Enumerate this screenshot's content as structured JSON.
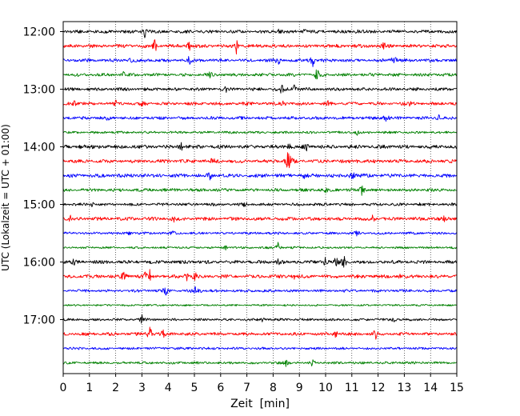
{
  "chart_data": {
    "type": "line",
    "title": "",
    "xlabel": "Zeit  [min]",
    "ylabel": "UTC (Lokalzeit = UTC + 01:00)",
    "xlim": [
      0,
      15
    ],
    "x_ticks": [
      0,
      1,
      2,
      3,
      4,
      5,
      6,
      7,
      8,
      9,
      10,
      11,
      12,
      13,
      14,
      15
    ],
    "x_tick_labels": [
      "0",
      "1",
      "2",
      "3",
      "4",
      "5",
      "6",
      "7",
      "8",
      "9",
      "10",
      "11",
      "12",
      "13",
      "14",
      "15"
    ],
    "grid": "vertical dotted lines at each minute",
    "start_time": "12:00",
    "end_time": "17:45",
    "trace_interval_minutes": 15,
    "y_tick_labels": [
      {
        "label": "12:00",
        "row": 0
      },
      {
        "label": "13:00",
        "row": 4
      },
      {
        "label": "14:00",
        "row": 8
      },
      {
        "label": "15:00",
        "row": 12
      },
      {
        "label": "16:00",
        "row": 16
      },
      {
        "label": "17:00",
        "row": 20
      }
    ],
    "colors": [
      "#000000",
      "#ff0000",
      "#0000ff",
      "#008000"
    ],
    "series": [
      {
        "time": "12:00",
        "color": "#000000",
        "noise": 2.0,
        "bursts": [
          [
            3.1,
            8
          ],
          [
            8.2,
            3
          ],
          [
            9.2,
            4
          ],
          [
            11.2,
            3
          ]
        ]
      },
      {
        "time": "12:15",
        "color": "#ff0000",
        "noise": 2.2,
        "bursts": [
          [
            3.5,
            9
          ],
          [
            4.8,
            7
          ],
          [
            6.6,
            9
          ],
          [
            12.2,
            6
          ]
        ]
      },
      {
        "time": "12:30",
        "color": "#0000ff",
        "noise": 2.0,
        "bursts": [
          [
            2.6,
            5
          ],
          [
            4.8,
            6
          ],
          [
            8.2,
            8
          ],
          [
            9.5,
            11
          ],
          [
            12.6,
            14
          ]
        ]
      },
      {
        "time": "12:45",
        "color": "#008000",
        "noise": 2.0,
        "bursts": [
          [
            9.7,
            14
          ],
          [
            2.3,
            3
          ],
          [
            5.6,
            3
          ]
        ]
      },
      {
        "time": "13:00",
        "color": "#000000",
        "noise": 2.0,
        "bursts": [
          [
            8.3,
            9
          ],
          [
            8.8,
            7
          ],
          [
            6.2,
            3
          ]
        ]
      },
      {
        "time": "13:15",
        "color": "#ff0000",
        "noise": 2.0,
        "bursts": [
          [
            0.4,
            6
          ],
          [
            2.0,
            5
          ],
          [
            3.0,
            3
          ],
          [
            8.4,
            4
          ],
          [
            10.1,
            3
          ],
          [
            13.2,
            3
          ]
        ]
      },
      {
        "time": "13:30",
        "color": "#0000ff",
        "noise": 2.0,
        "bursts": [
          [
            12.3,
            10
          ],
          [
            14.3,
            4
          ],
          [
            1.7,
            3
          ]
        ]
      },
      {
        "time": "13:45",
        "color": "#008000",
        "noise": 1.6,
        "bursts": [
          [
            11.2,
            3
          ]
        ]
      },
      {
        "time": "14:00",
        "color": "#000000",
        "noise": 2.3,
        "bursts": [
          [
            0.7,
            5
          ],
          [
            1.3,
            5
          ],
          [
            4.5,
            6
          ],
          [
            9.3,
            6
          ],
          [
            8.6,
            5
          ]
        ]
      },
      {
        "time": "14:15",
        "color": "#ff0000",
        "noise": 2.2,
        "bursts": [
          [
            8.6,
            25
          ],
          [
            5.7,
            4
          ],
          [
            11.2,
            3
          ]
        ]
      },
      {
        "time": "14:30",
        "color": "#0000ff",
        "noise": 2.4,
        "bursts": [
          [
            11.0,
            9
          ],
          [
            5.6,
            4
          ],
          [
            9.2,
            4
          ]
        ]
      },
      {
        "time": "14:45",
        "color": "#008000",
        "noise": 2.0,
        "bursts": [
          [
            11.4,
            9
          ],
          [
            4.2,
            4
          ],
          [
            10.0,
            3
          ]
        ]
      },
      {
        "time": "15:00",
        "color": "#000000",
        "noise": 1.8,
        "bursts": [
          [
            1.1,
            3
          ],
          [
            13.6,
            3
          ],
          [
            6.9,
            3
          ]
        ]
      },
      {
        "time": "15:15",
        "color": "#ff0000",
        "noise": 2.2,
        "bursts": [
          [
            0.3,
            4
          ],
          [
            4.2,
            4
          ],
          [
            11.8,
            4
          ],
          [
            14.5,
            3
          ]
        ]
      },
      {
        "time": "15:30",
        "color": "#0000ff",
        "noise": 1.6,
        "bursts": [
          [
            2.5,
            3
          ],
          [
            4.2,
            3
          ],
          [
            11.2,
            3
          ]
        ]
      },
      {
        "time": "15:45",
        "color": "#008000",
        "noise": 1.4,
        "bursts": [
          [
            8.2,
            8
          ],
          [
            6.2,
            3
          ]
        ]
      },
      {
        "time": "16:00",
        "color": "#000000",
        "noise": 2.2,
        "bursts": [
          [
            10.0,
            8
          ],
          [
            10.4,
            8
          ],
          [
            10.7,
            9
          ],
          [
            8.2,
            4
          ],
          [
            0.4,
            3
          ]
        ]
      },
      {
        "time": "16:15",
        "color": "#ff0000",
        "noise": 2.2,
        "bursts": [
          [
            2.3,
            7
          ],
          [
            3.1,
            6
          ],
          [
            3.3,
            7
          ],
          [
            4.7,
            7
          ],
          [
            5.0,
            8
          ],
          [
            8.8,
            4
          ],
          [
            12.8,
            3
          ]
        ]
      },
      {
        "time": "16:30",
        "color": "#0000ff",
        "noise": 1.8,
        "bursts": [
          [
            3.9,
            7
          ],
          [
            5.0,
            7
          ],
          [
            5.2,
            4
          ]
        ]
      },
      {
        "time": "16:45",
        "color": "#008000",
        "noise": 1.2,
        "bursts": []
      },
      {
        "time": "17:00",
        "color": "#000000",
        "noise": 1.6,
        "bursts": [
          [
            3.0,
            5
          ],
          [
            7.6,
            3
          ],
          [
            12.6,
            3
          ]
        ]
      },
      {
        "time": "17:15",
        "color": "#ff0000",
        "noise": 2.0,
        "bursts": [
          [
            3.3,
            14
          ],
          [
            3.8,
            5
          ],
          [
            10.4,
            8
          ],
          [
            11.9,
            8
          ]
        ]
      },
      {
        "time": "17:30",
        "color": "#0000ff",
        "noise": 1.6,
        "bursts": []
      },
      {
        "time": "17:45",
        "color": "#008000",
        "noise": 1.6,
        "bursts": [
          [
            8.5,
            7
          ],
          [
            9.5,
            7
          ]
        ]
      }
    ]
  }
}
